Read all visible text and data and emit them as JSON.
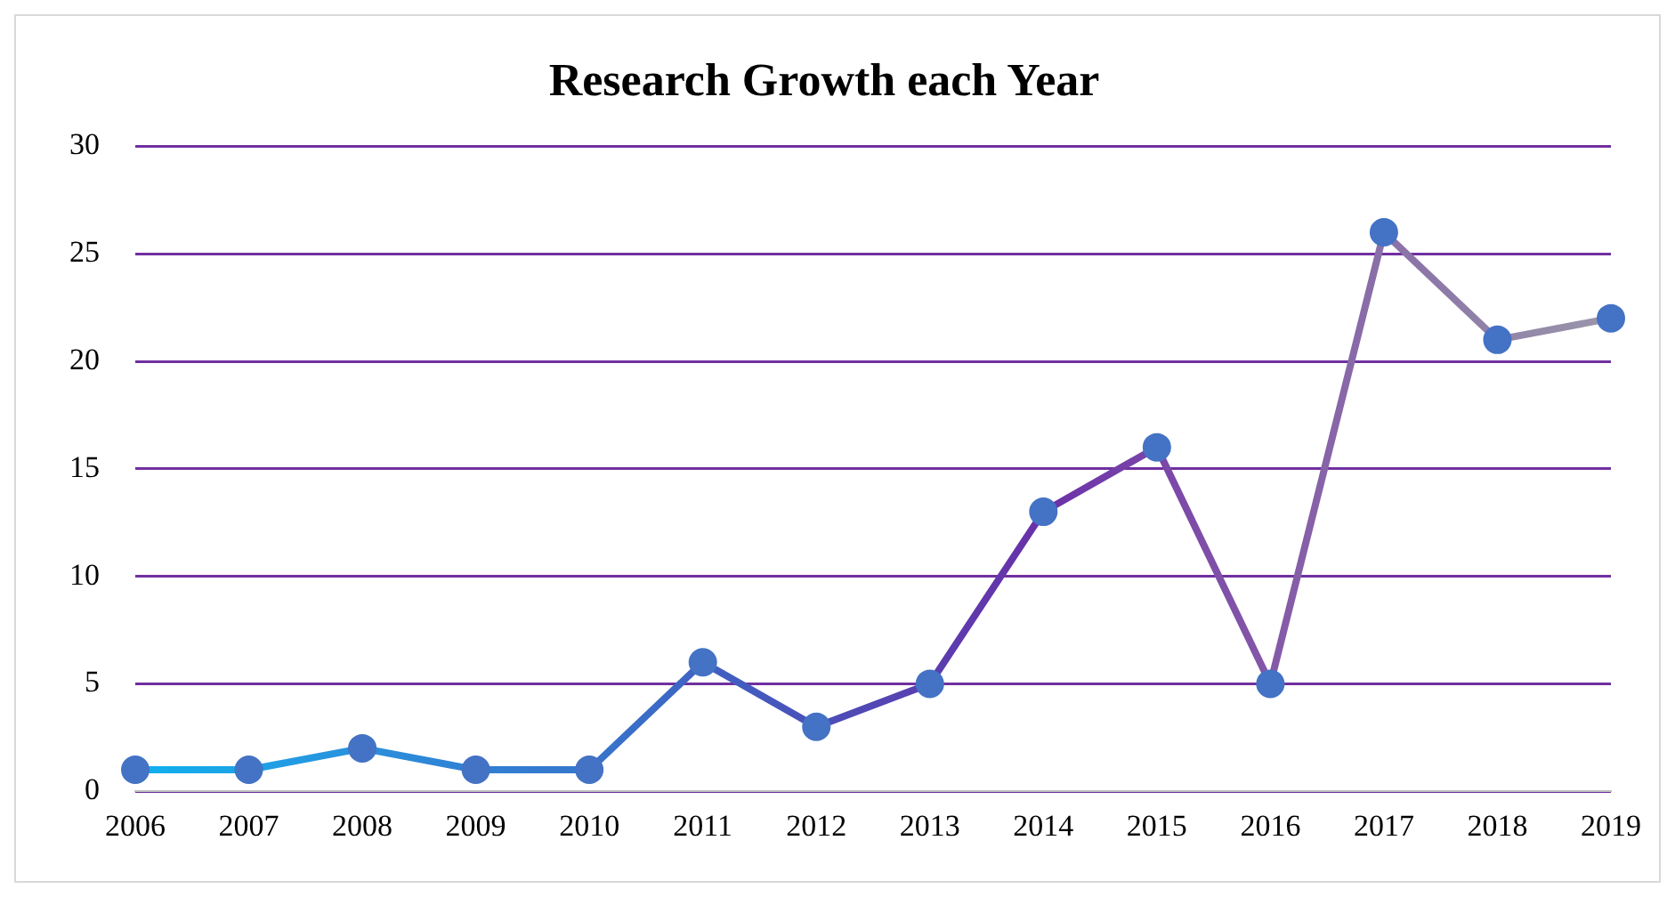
{
  "chart_data": {
    "type": "line",
    "title": "Research Growth each Year",
    "categories": [
      "2006",
      "2007",
      "2008",
      "2009",
      "2010",
      "2011",
      "2012",
      "2013",
      "2014",
      "2015",
      "2016",
      "2017",
      "2018",
      "2019"
    ],
    "series": [
      {
        "color": "#4472c4",
        "colors": [
          "#0fb0ee",
          "#1ea2e6",
          "#2a90dc",
          "#3080d4",
          "#3676cc",
          "#3f62c2",
          "#4a50b8",
          "#5a3eb0",
          "#6a30a8",
          "#7a46a8",
          "#8458a8",
          "#8a70a8",
          "#9084a8",
          "#9a96aa"
        ],
        "values": [
          1,
          1,
          2,
          1,
          1,
          6,
          3,
          5,
          13,
          16,
          5,
          26,
          21,
          22
        ]
      }
    ],
    "ylim": [
      0,
      30
    ],
    "yticks": [
      0,
      5,
      10,
      15,
      20,
      25,
      30
    ],
    "grid": "y",
    "legend": false,
    "marker": "circle",
    "line_style": "solid"
  }
}
